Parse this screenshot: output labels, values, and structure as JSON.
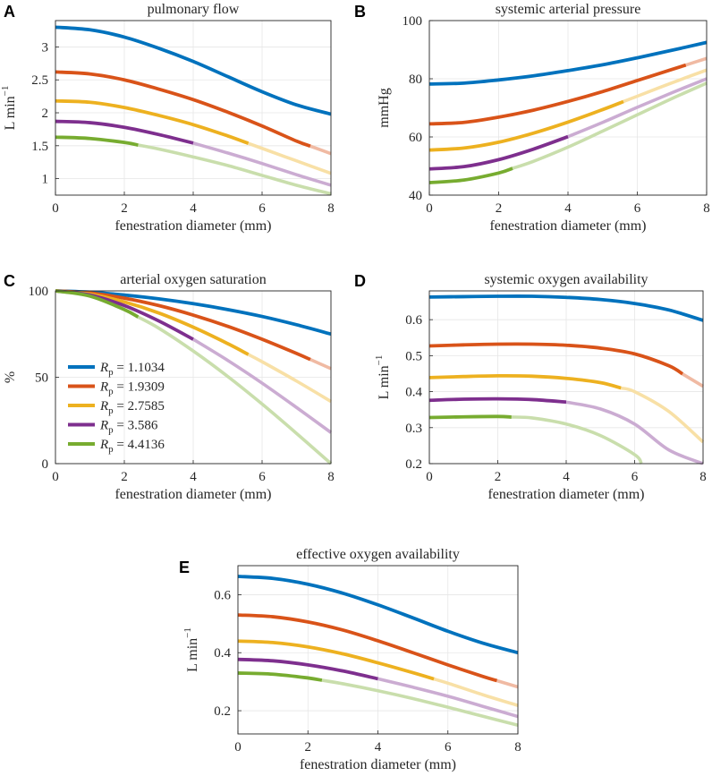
{
  "figure": {
    "colors": [
      "#0072BD",
      "#D95319",
      "#EDB120",
      "#7E2F8E",
      "#77AC30"
    ],
    "legend": [
      {
        "sym": "R",
        "sub": "p",
        "value": "= 1.1034"
      },
      {
        "sym": "R",
        "sub": "p",
        "value": "= 1.9309"
      },
      {
        "sym": "R",
        "sub": "p",
        "value": "= 2.7585"
      },
      {
        "sym": "R",
        "sub": "p",
        "value": "= 3.586"
      },
      {
        "sym": "R",
        "sub": "p",
        "value": "= 4.4136"
      }
    ]
  },
  "chart_data": [
    {
      "panel": "A",
      "type": "line",
      "title": "pulmonary flow",
      "xlabel": "fenestration diameter (mm)",
      "ylabel": "L min",
      "ylabel_sup": "−1",
      "xlim": [
        0,
        8
      ],
      "ylim": [
        0.75,
        3.4
      ],
      "xticks": [
        0,
        2,
        4,
        6,
        8
      ],
      "xtick_labels": [
        "0",
        "2",
        "4",
        "6",
        "8"
      ],
      "yticks": [
        1,
        1.5,
        2,
        2.5,
        3
      ],
      "ytick_labels": [
        "1",
        "1.5",
        "2",
        "2.5",
        "3"
      ],
      "grid": true,
      "series": [
        {
          "name": "Rp = 1.1034",
          "x": [
            0,
            1,
            2,
            3,
            4,
            5,
            6,
            7,
            8
          ],
          "y": [
            3.3,
            3.26,
            3.15,
            2.98,
            2.78,
            2.55,
            2.32,
            2.12,
            1.98
          ],
          "solid_until": 8
        },
        {
          "name": "Rp = 1.9309",
          "x": [
            0,
            1,
            2,
            3,
            4,
            5,
            6,
            7,
            8
          ],
          "y": [
            2.62,
            2.59,
            2.5,
            2.36,
            2.2,
            2.01,
            1.8,
            1.57,
            1.38
          ],
          "solid_until": 7.4
        },
        {
          "name": "Rp = 2.7585",
          "x": [
            0,
            1,
            2,
            3,
            4,
            5,
            6,
            7,
            8
          ],
          "y": [
            2.18,
            2.16,
            2.08,
            1.96,
            1.82,
            1.65,
            1.46,
            1.27,
            1.08
          ],
          "solid_until": 5.6
        },
        {
          "name": "Rp = 3.586",
          "x": [
            0,
            1,
            2,
            3,
            4,
            5,
            6,
            7,
            8
          ],
          "y": [
            1.87,
            1.85,
            1.78,
            1.67,
            1.54,
            1.39,
            1.23,
            1.06,
            0.9
          ],
          "solid_until": 4.0
        },
        {
          "name": "Rp = 4.4136",
          "x": [
            0,
            1,
            2,
            3,
            4,
            5,
            6,
            7,
            8
          ],
          "y": [
            1.63,
            1.61,
            1.55,
            1.45,
            1.33,
            1.2,
            1.05,
            0.9,
            0.77
          ],
          "solid_until": 2.4
        }
      ]
    },
    {
      "panel": "B",
      "type": "line",
      "title": "systemic arterial pressure",
      "xlabel": "fenestration diameter (mm)",
      "ylabel": "mmHg",
      "ylabel_sup": "",
      "xlim": [
        0,
        8
      ],
      "ylim": [
        40,
        100
      ],
      "xticks": [
        0,
        2,
        4,
        6,
        8
      ],
      "xtick_labels": [
        "0",
        "2",
        "4",
        "6",
        "8"
      ],
      "yticks": [
        40,
        60,
        80,
        100
      ],
      "ytick_labels": [
        "40",
        "60",
        "80",
        "100"
      ],
      "grid": true,
      "series": [
        {
          "name": "Rp = 1.1034",
          "x": [
            0,
            1,
            2,
            3,
            4,
            5,
            6,
            7,
            8
          ],
          "y": [
            78.2,
            78.5,
            79.6,
            81,
            82.8,
            84.8,
            87.2,
            89.8,
            92.5
          ],
          "solid_until": 8
        },
        {
          "name": "Rp = 1.9309",
          "x": [
            0,
            1,
            2,
            3,
            4,
            5,
            6,
            7,
            8
          ],
          "y": [
            64.5,
            65,
            66.8,
            69.2,
            72.2,
            75.6,
            79.4,
            83.2,
            87
          ],
          "solid_until": 7.4
        },
        {
          "name": "Rp = 2.7585",
          "x": [
            0,
            1,
            2,
            3,
            4,
            5,
            6,
            7,
            8
          ],
          "y": [
            55.5,
            56.2,
            58.2,
            61.3,
            65.1,
            69.4,
            74,
            78.6,
            83
          ],
          "solid_until": 5.6
        },
        {
          "name": "Rp = 3.586",
          "x": [
            0,
            1,
            2,
            3,
            4,
            5,
            6,
            7,
            8
          ],
          "y": [
            49,
            49.8,
            52.2,
            55.8,
            60.1,
            65,
            70.2,
            75.2,
            80
          ],
          "solid_until": 4.0
        },
        {
          "name": "Rp = 4.4136",
          "x": [
            0,
            1,
            2,
            3,
            4,
            5,
            6,
            7,
            8
          ],
          "y": [
            44.3,
            45.2,
            47.6,
            51.6,
            56.5,
            62,
            67.6,
            73.2,
            78.5
          ],
          "solid_until": 2.4
        }
      ]
    },
    {
      "panel": "C",
      "type": "line",
      "title": "arterial oxygen saturation",
      "xlabel": "fenestration diameter (mm)",
      "ylabel": "%",
      "ylabel_sup": "",
      "xlim": [
        0,
        8
      ],
      "ylim": [
        0,
        100
      ],
      "xticks": [
        0,
        2,
        4,
        6,
        8
      ],
      "xtick_labels": [
        "0",
        "2",
        "4",
        "6",
        "8"
      ],
      "yticks": [
        0,
        50,
        100
      ],
      "ytick_labels": [
        "0",
        "50",
        "100"
      ],
      "grid": true,
      "legend_position": "center-left",
      "series": [
        {
          "name": "Rp = 1.1034",
          "x": [
            0,
            1,
            2,
            3,
            4,
            5,
            6,
            7,
            8
          ],
          "y": [
            100,
            99.3,
            97.6,
            95.4,
            92.6,
            89.2,
            85.2,
            80.4,
            75
          ],
          "solid_until": 8
        },
        {
          "name": "Rp = 1.9309",
          "x": [
            0,
            1,
            2,
            3,
            4,
            5,
            6,
            7,
            8
          ],
          "y": [
            100,
            98.8,
            95.8,
            91.5,
            86,
            79.5,
            72,
            63.8,
            55
          ],
          "solid_until": 7.4
        },
        {
          "name": "Rp = 2.7585",
          "x": [
            0,
            1,
            2,
            3,
            4,
            5,
            6,
            7,
            8
          ],
          "y": [
            100,
            98.2,
            93.6,
            87.2,
            79,
            69.5,
            59,
            47.8,
            36
          ],
          "solid_until": 5.6
        },
        {
          "name": "Rp = 3.586",
          "x": [
            0,
            1,
            2,
            3,
            4,
            5,
            6,
            7,
            8
          ],
          "y": [
            100,
            97.6,
            91.5,
            82.6,
            72,
            59.8,
            46.6,
            32.5,
            18
          ],
          "solid_until": 4.0
        },
        {
          "name": "Rp = 4.4136",
          "x": [
            0,
            1,
            2,
            3,
            4,
            5,
            6,
            7,
            8
          ],
          "y": [
            100,
            97,
            89.2,
            78.4,
            65.2,
            50.5,
            34.5,
            17.5,
            0
          ],
          "solid_until": 2.4
        }
      ]
    },
    {
      "panel": "D",
      "type": "line",
      "title": "systemic oxygen availability",
      "xlabel": "fenestration diameter (mm)",
      "ylabel": "L min",
      "ylabel_sup": "−1",
      "xlim": [
        0,
        8
      ],
      "ylim": [
        0.2,
        0.68
      ],
      "xticks": [
        0,
        2,
        4,
        6,
        8
      ],
      "xtick_labels": [
        "0",
        "2",
        "4",
        "6",
        "8"
      ],
      "yticks": [
        0.2,
        0.3,
        0.4,
        0.5,
        0.6
      ],
      "ytick_labels": [
        "0.2",
        "0.3",
        "0.4",
        "0.5",
        "0.6"
      ],
      "grid": true,
      "series": [
        {
          "name": "Rp = 1.1034",
          "x": [
            0,
            1,
            2,
            3,
            4,
            5,
            6,
            7,
            8
          ],
          "y": [
            0.663,
            0.664,
            0.665,
            0.665,
            0.662,
            0.656,
            0.645,
            0.627,
            0.598
          ],
          "solid_until": 8
        },
        {
          "name": "Rp = 1.9309",
          "x": [
            0,
            1,
            2,
            3,
            4,
            5,
            6,
            7,
            8
          ],
          "y": [
            0.527,
            0.53,
            0.532,
            0.532,
            0.529,
            0.521,
            0.505,
            0.472,
            0.415
          ],
          "solid_until": 7.4
        },
        {
          "name": "Rp = 2.7585",
          "x": [
            0,
            1,
            2,
            3,
            4,
            5,
            6,
            7,
            8
          ],
          "y": [
            0.439,
            0.442,
            0.444,
            0.443,
            0.437,
            0.425,
            0.4,
            0.345,
            0.26
          ],
          "solid_until": 5.6
        },
        {
          "name": "Rp = 3.586",
          "x": [
            0,
            1,
            2,
            3,
            4,
            5,
            6,
            7,
            8
          ],
          "y": [
            0.376,
            0.379,
            0.38,
            0.378,
            0.371,
            0.352,
            0.31,
            0.238,
            0.2
          ],
          "solid_until": 4.0
        },
        {
          "name": "Rp = 4.4136",
          "x": [
            0,
            1,
            2,
            3,
            4,
            5,
            6,
            6.2
          ],
          "y": [
            0.328,
            0.33,
            0.331,
            0.327,
            0.31,
            0.278,
            0.225,
            0.2
          ],
          "solid_until": 2.4
        }
      ]
    },
    {
      "panel": "E",
      "type": "line",
      "title": "effective oxygen availability",
      "xlabel": "fenestration diameter (mm)",
      "ylabel": "L min",
      "ylabel_sup": "−1",
      "xlim": [
        0,
        8
      ],
      "ylim": [
        0.12,
        0.7
      ],
      "xticks": [
        0,
        2,
        4,
        6,
        8
      ],
      "xtick_labels": [
        "0",
        "2",
        "4",
        "6",
        "8"
      ],
      "yticks": [
        0.2,
        0.4,
        0.6
      ],
      "ytick_labels": [
        "0.2",
        "0.4",
        "0.6"
      ],
      "grid": true,
      "series": [
        {
          "name": "Rp = 1.1034",
          "x": [
            0,
            1,
            2,
            3,
            4,
            5,
            6,
            7,
            8
          ],
          "y": [
            0.663,
            0.656,
            0.636,
            0.605,
            0.565,
            0.52,
            0.474,
            0.433,
            0.4
          ],
          "solid_until": 8
        },
        {
          "name": "Rp = 1.9309",
          "x": [
            0,
            1,
            2,
            3,
            4,
            5,
            6,
            7,
            8
          ],
          "y": [
            0.53,
            0.524,
            0.506,
            0.478,
            0.441,
            0.4,
            0.358,
            0.318,
            0.282
          ],
          "solid_until": 7.4
        },
        {
          "name": "Rp = 2.7585",
          "x": [
            0,
            1,
            2,
            3,
            4,
            5,
            6,
            7,
            8
          ],
          "y": [
            0.44,
            0.435,
            0.42,
            0.396,
            0.365,
            0.331,
            0.295,
            0.255,
            0.218
          ],
          "solid_until": 5.6
        },
        {
          "name": "Rp = 3.586",
          "x": [
            0,
            1,
            2,
            3,
            4,
            5,
            6,
            7,
            8
          ],
          "y": [
            0.377,
            0.372,
            0.358,
            0.337,
            0.31,
            0.281,
            0.25,
            0.215,
            0.18
          ],
          "solid_until": 4.0
        },
        {
          "name": "Rp = 4.4136",
          "x": [
            0,
            1,
            2,
            3,
            4,
            5,
            6,
            7,
            8
          ],
          "y": [
            0.33,
            0.326,
            0.313,
            0.293,
            0.269,
            0.242,
            0.212,
            0.181,
            0.15
          ],
          "solid_until": 2.4
        }
      ]
    }
  ]
}
